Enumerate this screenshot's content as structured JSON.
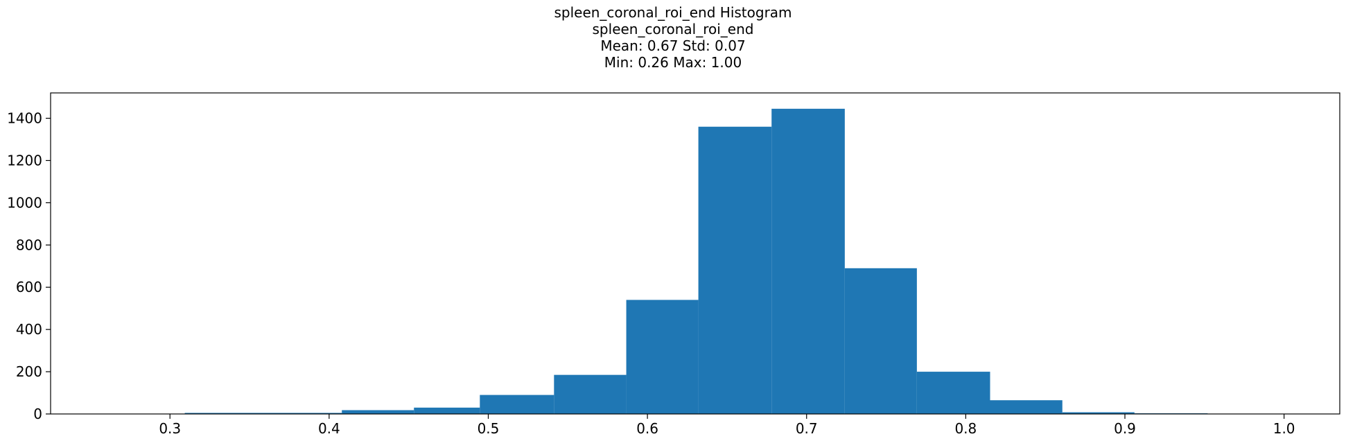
{
  "chart_data": {
    "type": "bar",
    "title": "spleen_coronal_roi_end Histogram",
    "subtitle_lines": [
      "spleen_coronal_roi_end",
      "Mean: 0.67 Std: 0.07",
      "Min: 0.26 Max: 1.00"
    ],
    "xlabel": "",
    "ylabel": "",
    "xlim": [
      0.225,
      1.035
    ],
    "ylim": [
      0,
      1520
    ],
    "xticks": [
      0.3,
      0.4,
      0.5,
      0.6,
      0.7,
      0.8,
      0.9,
      1.0
    ],
    "xtick_labels": [
      "0.3",
      "0.4",
      "0.5",
      "0.6",
      "0.7",
      "0.8",
      "0.9",
      "1.0"
    ],
    "yticks": [
      0,
      200,
      400,
      600,
      800,
      1000,
      1200,
      1400
    ],
    "ytick_labels": [
      "0",
      "200",
      "400",
      "600",
      "800",
      "1000",
      "1200",
      "1400"
    ],
    "bin_edges": [
      0.26,
      0.3093,
      0.3587,
      0.408,
      0.4533,
      0.4947,
      0.5413,
      0.5867,
      0.632,
      0.678,
      0.724,
      0.7693,
      0.8153,
      0.8607,
      0.906,
      0.952,
      1.0
    ],
    "values": [
      1,
      5,
      5,
      18,
      30,
      90,
      185,
      540,
      1360,
      1445,
      690,
      200,
      65,
      8,
      3,
      1
    ],
    "bar_color": "#1f77b4",
    "grid": false,
    "legend": "none"
  }
}
